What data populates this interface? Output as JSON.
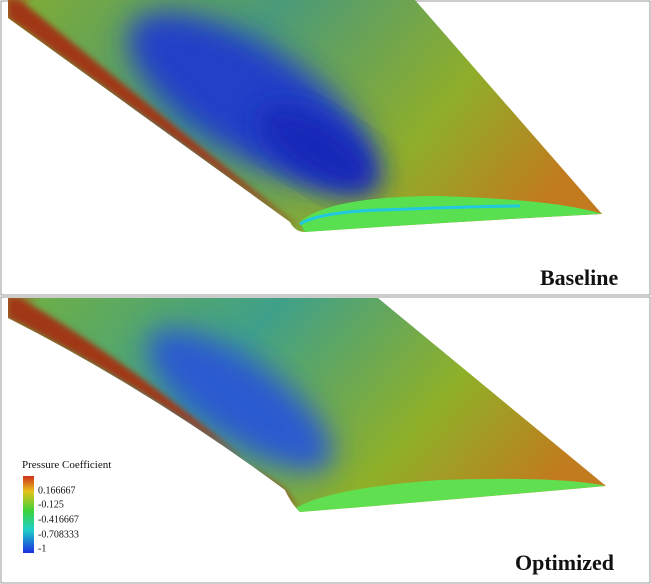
{
  "panels": [
    {
      "label": "Baseline"
    },
    {
      "label": "Optimized"
    }
  ],
  "legend": {
    "title": "Pressure Coefficient",
    "labels": [
      "0.166667",
      "-0.125",
      "-0.416667",
      "-0.708333",
      "-1"
    ]
  }
}
